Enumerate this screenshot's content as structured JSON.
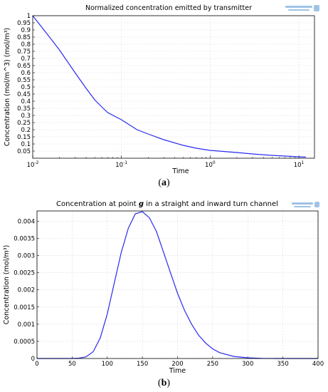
{
  "chart_data": [
    {
      "type": "line",
      "title": "Normalized concentration emitted by transmitter",
      "xlabel": "Time",
      "ylabel": "Concentration (mol/m^3) (mol/m³)",
      "xscale": "log",
      "xlim": [
        0.01,
        15
      ],
      "ylim": [
        0,
        1
      ],
      "x_ticks": [
        {
          "value": 0.01,
          "base": "10",
          "exp": "-2"
        },
        {
          "value": 0.1,
          "base": "10",
          "exp": "-1"
        },
        {
          "value": 1,
          "base": "10",
          "exp": "0"
        },
        {
          "value": 10,
          "base": "10",
          "exp": "1"
        }
      ],
      "y_ticks": [
        "0.05",
        "0.1",
        "0.15",
        "0.2",
        "0.25",
        "0.3",
        "0.35",
        "0.4",
        "0.45",
        "0.5",
        "0.55",
        "0.6",
        "0.65",
        "0.7",
        "0.75",
        "0.8",
        "0.85",
        "0.9",
        "0.95",
        "1"
      ],
      "grid": true,
      "color": "#2b2bf0",
      "series": [
        {
          "x": [
            0.01,
            0.015,
            0.02,
            0.03,
            0.04,
            0.05,
            0.06,
            0.07,
            0.1,
            0.15,
            0.2,
            0.3,
            0.5,
            0.7,
            1,
            2,
            3,
            5,
            10,
            12
          ],
          "values": [
            1.0,
            0.86,
            0.76,
            0.6,
            0.49,
            0.41,
            0.36,
            0.32,
            0.27,
            0.2,
            0.17,
            0.13,
            0.09,
            0.07,
            0.055,
            0.04,
            0.03,
            0.02,
            0.01,
            0.008
          ]
        }
      ]
    },
    {
      "type": "line",
      "title_pre": "Concentration at point ",
      "title_var": "g",
      "title_post": " in a straight and inward turn channel",
      "xlabel": "Time",
      "ylabel": "Concentration (mol/m³)",
      "xlim": [
        0,
        400
      ],
      "ylim": [
        0,
        0.0043
      ],
      "x_ticks": [
        "0",
        "50",
        "100",
        "150",
        "200",
        "250",
        "300",
        "350",
        "400"
      ],
      "y_ticks": [
        "0",
        "0.0005",
        "0.001",
        "0.0015",
        "0.002",
        "0.0025",
        "0.003",
        "0.0035",
        "0.004"
      ],
      "grid": true,
      "color": "#2b2bf0",
      "series": [
        {
          "x": [
            0,
            50,
            60,
            70,
            80,
            90,
            100,
            110,
            120,
            130,
            140,
            150,
            160,
            170,
            180,
            190,
            200,
            210,
            220,
            230,
            240,
            250,
            260,
            280,
            300,
            320,
            340,
            360,
            400
          ],
          "values": [
            0,
            0,
            1e-05,
            5e-05,
            0.0002,
            0.0006,
            0.0013,
            0.0022,
            0.0031,
            0.0038,
            0.00422,
            0.00428,
            0.0041,
            0.0037,
            0.0031,
            0.0025,
            0.0019,
            0.0014,
            0.001,
            0.00068,
            0.00045,
            0.00028,
            0.00017,
            6e-05,
            2e-05,
            5e-06,
            0,
            0,
            0
          ]
        }
      ]
    }
  ],
  "captions": {
    "a_open": "(",
    "a_letter": "a",
    "a_close": ")",
    "b_open": "(",
    "b_letter": "b",
    "b_close": ")"
  },
  "logo_icon": "comsol-logo-icon"
}
